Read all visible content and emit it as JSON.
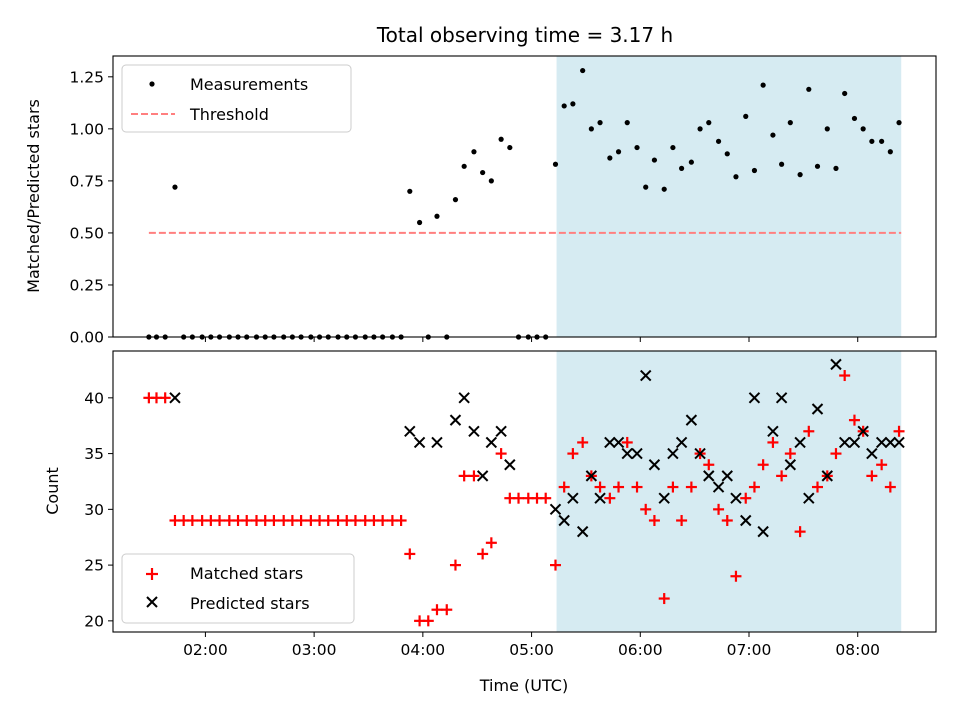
{
  "chart_data": {
    "title": "Total observing time = 3.17 h",
    "xlabel": "Time (UTC)",
    "x_tick_labels": [
      "02:00",
      "03:00",
      "04:00",
      "05:00",
      "06:00",
      "07:00",
      "08:00"
    ],
    "x_ticks_hours": [
      2,
      3,
      4,
      5,
      6,
      7,
      8
    ],
    "xlim_hours": [
      1.15,
      8.72
    ],
    "shaded_region_hours": [
      5.23,
      8.4
    ],
    "colors": {
      "shade": "#add8e6",
      "measurements": "#000000",
      "threshold": "#ff7f7f",
      "matched": "#ff0000",
      "predicted": "#000000"
    },
    "panels": [
      {
        "type": "scatter",
        "ylabel": "Matched/Predicted stars",
        "ylim": [
          0,
          1.35
        ],
        "y_ticks": [
          0,
          0.25,
          0.5,
          0.75,
          1.0,
          1.25
        ],
        "y_tick_labels": [
          "0.00",
          "0.25",
          "0.50",
          "0.75",
          "1.00",
          "1.25"
        ],
        "legend": {
          "placement": "upper-left",
          "entries": [
            {
              "label": "Measurements",
              "marker": "dot"
            },
            {
              "label": "Threshold",
              "marker": "dashed-line"
            }
          ]
        },
        "threshold": {
          "y": 0.5,
          "x_range": [
            1.48,
            8.4
          ]
        },
        "series": [
          {
            "name": "Measurements",
            "points": [
              [
                1.48,
                0.0
              ],
              [
                1.55,
                0.0
              ],
              [
                1.63,
                0.0
              ],
              [
                1.72,
                0.72
              ],
              [
                1.8,
                0.0
              ],
              [
                1.88,
                0.0
              ],
              [
                1.97,
                0.0
              ],
              [
                2.05,
                0.0
              ],
              [
                2.13,
                0.0
              ],
              [
                2.22,
                0.0
              ],
              [
                2.3,
                0.0
              ],
              [
                2.38,
                0.0
              ],
              [
                2.47,
                0.0
              ],
              [
                2.55,
                0.0
              ],
              [
                2.63,
                0.0
              ],
              [
                2.72,
                0.0
              ],
              [
                2.8,
                0.0
              ],
              [
                2.88,
                0.0
              ],
              [
                2.97,
                0.0
              ],
              [
                3.05,
                0.0
              ],
              [
                3.13,
                0.0
              ],
              [
                3.22,
                0.0
              ],
              [
                3.3,
                0.0
              ],
              [
                3.38,
                0.0
              ],
              [
                3.47,
                0.0
              ],
              [
                3.55,
                0.0
              ],
              [
                3.63,
                0.0
              ],
              [
                3.72,
                0.0
              ],
              [
                3.8,
                0.0
              ],
              [
                3.88,
                0.7
              ],
              [
                3.97,
                0.55
              ],
              [
                4.05,
                0.0
              ],
              [
                4.13,
                0.58
              ],
              [
                4.22,
                0.0
              ],
              [
                4.3,
                0.66
              ],
              [
                4.38,
                0.82
              ],
              [
                4.47,
                0.89
              ],
              [
                4.55,
                0.79
              ],
              [
                4.63,
                0.75
              ],
              [
                4.72,
                0.95
              ],
              [
                4.8,
                0.91
              ],
              [
                4.88,
                0.0
              ],
              [
                4.97,
                0.0
              ],
              [
                5.05,
                0.0
              ],
              [
                5.13,
                0.0
              ],
              [
                5.22,
                0.83
              ],
              [
                5.3,
                1.11
              ],
              [
                5.38,
                1.12
              ],
              [
                5.47,
                1.28
              ],
              [
                5.55,
                1.0
              ],
              [
                5.63,
                1.03
              ],
              [
                5.72,
                0.86
              ],
              [
                5.8,
                0.89
              ],
              [
                5.88,
                1.03
              ],
              [
                5.97,
                0.91
              ],
              [
                6.05,
                0.72
              ],
              [
                6.13,
                0.85
              ],
              [
                6.22,
                0.71
              ],
              [
                6.3,
                0.91
              ],
              [
                6.38,
                0.81
              ],
              [
                6.47,
                0.84
              ],
              [
                6.55,
                1.0
              ],
              [
                6.63,
                1.03
              ],
              [
                6.72,
                0.94
              ],
              [
                6.8,
                0.88
              ],
              [
                6.88,
                0.77
              ],
              [
                6.97,
                1.06
              ],
              [
                7.05,
                0.8
              ],
              [
                7.13,
                1.21
              ],
              [
                7.22,
                0.97
              ],
              [
                7.3,
                0.83
              ],
              [
                7.38,
                1.03
              ],
              [
                7.47,
                0.78
              ],
              [
                7.55,
                1.19
              ],
              [
                7.63,
                0.82
              ],
              [
                7.72,
                1.0
              ],
              [
                7.8,
                0.81
              ],
              [
                7.88,
                1.17
              ],
              [
                7.97,
                1.05
              ],
              [
                8.05,
                1.0
              ],
              [
                8.13,
                0.94
              ],
              [
                8.22,
                0.94
              ],
              [
                8.3,
                0.89
              ],
              [
                8.38,
                1.03
              ]
            ]
          }
        ]
      },
      {
        "type": "scatter",
        "ylabel": "Count",
        "ylim": [
          19.0,
          44.2
        ],
        "y_ticks": [
          20,
          25,
          30,
          35,
          40
        ],
        "y_tick_labels": [
          "20",
          "25",
          "30",
          "35",
          "40"
        ],
        "legend": {
          "placement": "lower-left",
          "entries": [
            {
              "label": "Matched stars",
              "marker": "plus"
            },
            {
              "label": "Predicted stars",
              "marker": "x"
            }
          ]
        },
        "series": [
          {
            "name": "Matched stars",
            "points": [
              [
                1.48,
                40
              ],
              [
                1.55,
                40
              ],
              [
                1.63,
                40
              ],
              [
                1.72,
                29
              ],
              [
                1.8,
                29
              ],
              [
                1.88,
                29
              ],
              [
                1.97,
                29
              ],
              [
                2.05,
                29
              ],
              [
                2.13,
                29
              ],
              [
                2.22,
                29
              ],
              [
                2.3,
                29
              ],
              [
                2.38,
                29
              ],
              [
                2.47,
                29
              ],
              [
                2.55,
                29
              ],
              [
                2.63,
                29
              ],
              [
                2.72,
                29
              ],
              [
                2.8,
                29
              ],
              [
                2.88,
                29
              ],
              [
                2.97,
                29
              ],
              [
                3.05,
                29
              ],
              [
                3.13,
                29
              ],
              [
                3.22,
                29
              ],
              [
                3.3,
                29
              ],
              [
                3.38,
                29
              ],
              [
                3.47,
                29
              ],
              [
                3.55,
                29
              ],
              [
                3.63,
                29
              ],
              [
                3.72,
                29
              ],
              [
                3.8,
                29
              ],
              [
                3.88,
                26
              ],
              [
                3.97,
                20
              ],
              [
                4.05,
                20
              ],
              [
                4.13,
                21
              ],
              [
                4.22,
                21
              ],
              [
                4.3,
                25
              ],
              [
                4.38,
                33
              ],
              [
                4.47,
                33
              ],
              [
                4.55,
                26
              ],
              [
                4.63,
                27
              ],
              [
                4.72,
                35
              ],
              [
                4.8,
                31
              ],
              [
                4.88,
                31
              ],
              [
                4.97,
                31
              ],
              [
                5.05,
                31
              ],
              [
                5.13,
                31
              ],
              [
                5.22,
                25
              ],
              [
                5.3,
                32
              ],
              [
                5.38,
                35
              ],
              [
                5.47,
                36
              ],
              [
                5.55,
                33
              ],
              [
                5.63,
                32
              ],
              [
                5.72,
                31
              ],
              [
                5.8,
                32
              ],
              [
                5.88,
                36
              ],
              [
                5.97,
                32
              ],
              [
                6.05,
                30
              ],
              [
                6.13,
                29
              ],
              [
                6.22,
                22
              ],
              [
                6.3,
                32
              ],
              [
                6.38,
                29
              ],
              [
                6.47,
                32
              ],
              [
                6.55,
                35
              ],
              [
                6.63,
                34
              ],
              [
                6.72,
                30
              ],
              [
                6.8,
                29
              ],
              [
                6.88,
                24
              ],
              [
                6.97,
                31
              ],
              [
                7.05,
                32
              ],
              [
                7.13,
                34
              ],
              [
                7.22,
                36
              ],
              [
                7.3,
                33
              ],
              [
                7.38,
                35
              ],
              [
                7.47,
                28
              ],
              [
                7.55,
                37
              ],
              [
                7.63,
                32
              ],
              [
                7.72,
                33
              ],
              [
                7.8,
                35
              ],
              [
                7.88,
                42
              ],
              [
                7.97,
                38
              ],
              [
                8.05,
                37
              ],
              [
                8.13,
                33
              ],
              [
                8.22,
                34
              ],
              [
                8.3,
                32
              ],
              [
                8.38,
                37
              ]
            ]
          },
          {
            "name": "Predicted stars",
            "points": [
              [
                1.72,
                40
              ],
              [
                3.88,
                37
              ],
              [
                3.97,
                36
              ],
              [
                4.13,
                36
              ],
              [
                4.3,
                38
              ],
              [
                4.38,
                40
              ],
              [
                4.47,
                37
              ],
              [
                4.55,
                33
              ],
              [
                4.63,
                36
              ],
              [
                4.72,
                37
              ],
              [
                4.8,
                34
              ],
              [
                5.22,
                30
              ],
              [
                5.3,
                29
              ],
              [
                5.38,
                31
              ],
              [
                5.47,
                28
              ],
              [
                5.55,
                33
              ],
              [
                5.63,
                31
              ],
              [
                5.72,
                36
              ],
              [
                5.8,
                36
              ],
              [
                5.88,
                35
              ],
              [
                5.97,
                35
              ],
              [
                6.05,
                42
              ],
              [
                6.13,
                34
              ],
              [
                6.22,
                31
              ],
              [
                6.3,
                35
              ],
              [
                6.38,
                36
              ],
              [
                6.47,
                38
              ],
              [
                6.55,
                35
              ],
              [
                6.63,
                33
              ],
              [
                6.72,
                32
              ],
              [
                6.8,
                33
              ],
              [
                6.88,
                31
              ],
              [
                6.97,
                29
              ],
              [
                7.05,
                40
              ],
              [
                7.13,
                28
              ],
              [
                7.22,
                37
              ],
              [
                7.3,
                40
              ],
              [
                7.38,
                34
              ],
              [
                7.47,
                36
              ],
              [
                7.55,
                31
              ],
              [
                7.63,
                39
              ],
              [
                7.72,
                33
              ],
              [
                7.8,
                43
              ],
              [
                7.88,
                36
              ],
              [
                7.97,
                36
              ],
              [
                8.05,
                37
              ],
              [
                8.13,
                35
              ],
              [
                8.22,
                36
              ],
              [
                8.3,
                36
              ],
              [
                8.38,
                36
              ]
            ]
          }
        ]
      }
    ]
  }
}
